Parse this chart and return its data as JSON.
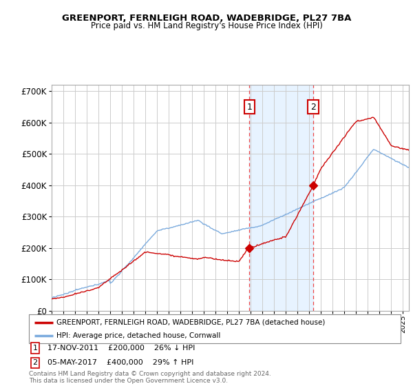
{
  "title1": "GREENPORT, FERNLEIGH ROAD, WADEBRIDGE, PL27 7BA",
  "title2": "Price paid vs. HM Land Registry's House Price Index (HPI)",
  "background_color": "#ffffff",
  "plot_bg_color": "#ffffff",
  "grid_color": "#cccccc",
  "hpi_line_color": "#7aaadd",
  "price_line_color": "#cc0000",
  "shade_color": "#ddeeff",
  "ylim": [
    0,
    720000
  ],
  "yticks": [
    0,
    100000,
    200000,
    300000,
    400000,
    500000,
    600000,
    700000
  ],
  "ytick_labels": [
    "£0",
    "£100K",
    "£200K",
    "£300K",
    "£400K",
    "£500K",
    "£600K",
    "£700K"
  ],
  "sale1_date": 2011.88,
  "sale1_price": 200000,
  "sale1_label": "1",
  "sale1_note": "17-NOV-2011    £200,000    26% ↓ HPI",
  "sale2_date": 2017.34,
  "sale2_price": 400000,
  "sale2_label": "2",
  "sale2_note": "05-MAY-2017    £400,000    29% ↑ HPI",
  "legend_line1": "GREENPORT, FERNLEIGH ROAD, WADEBRIDGE, PL27 7BA (detached house)",
  "legend_line2": "HPI: Average price, detached house, Cornwall",
  "footnote": "Contains HM Land Registry data © Crown copyright and database right 2024.\nThis data is licensed under the Open Government Licence v3.0.",
  "xmin": 1995,
  "xmax": 2025.5
}
